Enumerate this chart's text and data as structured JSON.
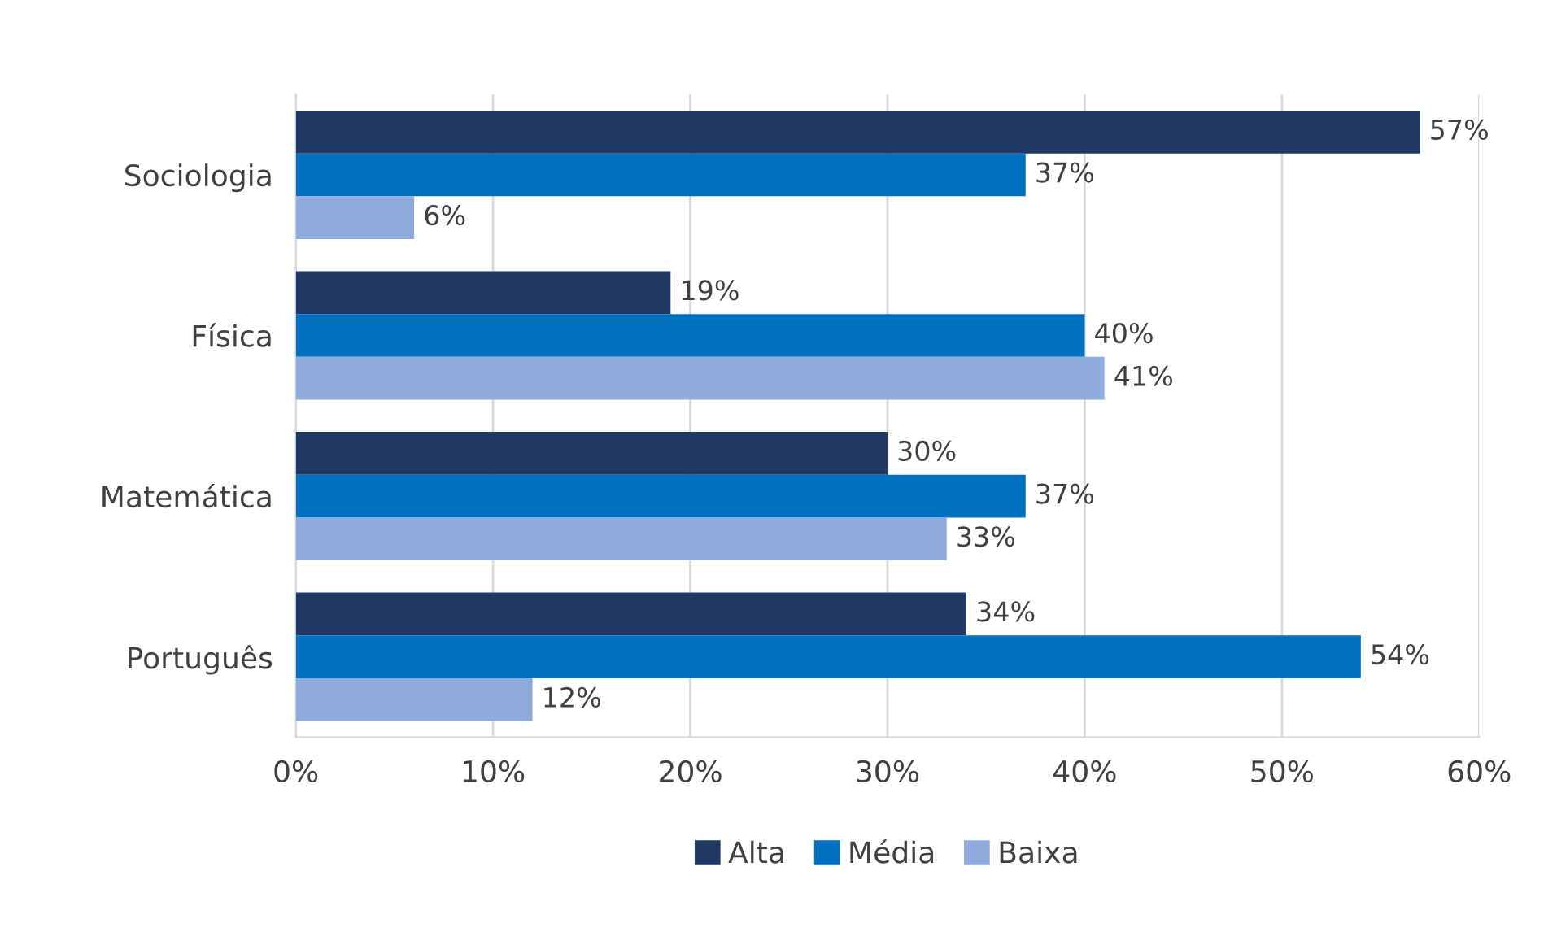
{
  "chart_data": {
    "type": "bar",
    "orientation": "horizontal",
    "categories": [
      "Sociologia",
      "Física",
      "Matemática",
      "Português"
    ],
    "series": [
      {
        "name": "Alta",
        "color": "#203864",
        "values": [
          57,
          19,
          30,
          34
        ],
        "value_labels": [
          "57%",
          "19%",
          "30%",
          "34%"
        ]
      },
      {
        "name": "Média",
        "color": "#0070c0",
        "values": [
          37,
          40,
          37,
          54
        ],
        "value_labels": [
          "37%",
          "40%",
          "37%",
          "54%"
        ]
      },
      {
        "name": "Baixa",
        "color": "#8faadc",
        "values": [
          6,
          41,
          33,
          12
        ],
        "value_labels": [
          "6%",
          "41%",
          "33%",
          "12%"
        ]
      }
    ],
    "xlim": [
      0,
      60
    ],
    "xticks": [
      {
        "value": 0,
        "label": "0%"
      },
      {
        "value": 10,
        "label": "10%"
      },
      {
        "value": 20,
        "label": "20%"
      },
      {
        "value": 30,
        "label": "30%"
      },
      {
        "value": 40,
        "label": "40%"
      },
      {
        "value": 50,
        "label": "50%"
      },
      {
        "value": 60,
        "label": "60%"
      }
    ],
    "grid": "x",
    "legend": "bottom"
  }
}
